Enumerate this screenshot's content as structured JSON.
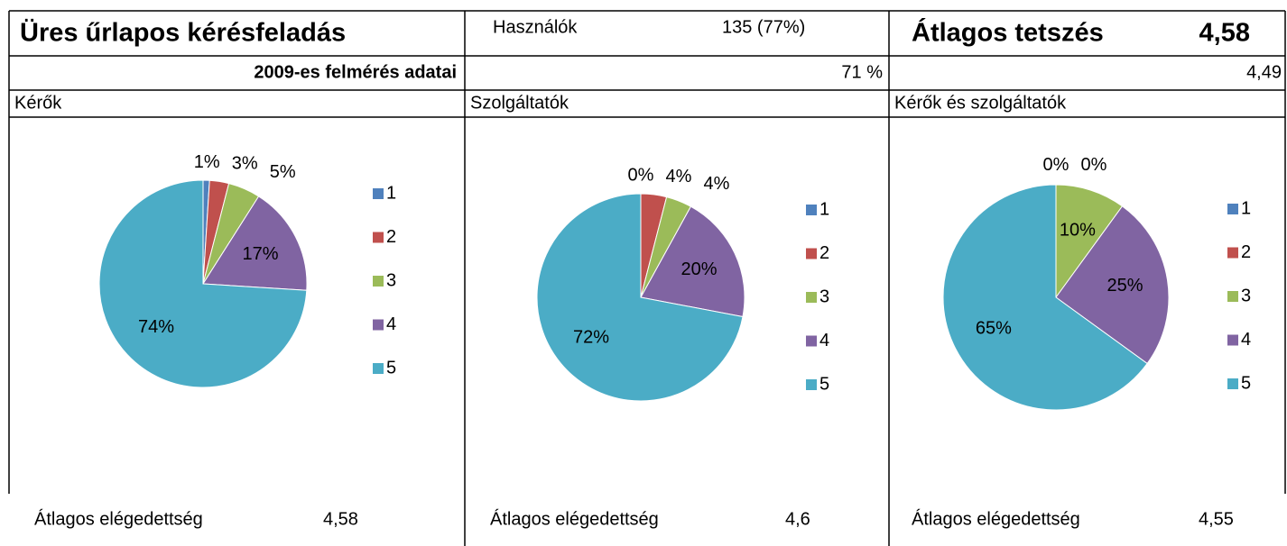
{
  "header": {
    "title": "Üres űrlapos kérésfeladás",
    "subtitle": "2009-es felmérés adatai"
  },
  "users": {
    "label": "Használók",
    "value": "135 (77%)",
    "previous": "71 %"
  },
  "liking": {
    "label": "Átlagos tetszés",
    "value": "4,58",
    "previous": "4,49"
  },
  "chart_data": [
    {
      "type": "pie",
      "title": "Kérők",
      "categories": [
        "1",
        "2",
        "3",
        "4",
        "5"
      ],
      "values": [
        1,
        3,
        5,
        17,
        74
      ],
      "value_labels": [
        "1%",
        "3%",
        "5%",
        "17%",
        "74%"
      ],
      "colors": [
        "#4f81bd",
        "#c0504d",
        "#9bbb59",
        "#8064a2",
        "#4bacc6"
      ],
      "footer": {
        "label": "Átlagos elégedettség",
        "value": "4,58"
      }
    },
    {
      "type": "pie",
      "title": "Szolgáltatók",
      "categories": [
        "1",
        "2",
        "3",
        "4",
        "5"
      ],
      "values": [
        0,
        4,
        4,
        20,
        72
      ],
      "value_labels": [
        "0%",
        "4%",
        "4%",
        "20%",
        "72%"
      ],
      "colors": [
        "#4f81bd",
        "#c0504d",
        "#9bbb59",
        "#8064a2",
        "#4bacc6"
      ],
      "footer": {
        "label": "Átlagos elégedettség",
        "value": "4,6"
      }
    },
    {
      "type": "pie",
      "title": "Kérők és szolgáltatók",
      "categories": [
        "1",
        "2",
        "3",
        "4",
        "5"
      ],
      "values": [
        0,
        0,
        10,
        25,
        65
      ],
      "value_labels": [
        "0%",
        "0%",
        "10%",
        "25%",
        "65%"
      ],
      "colors": [
        "#4f81bd",
        "#c0504d",
        "#9bbb59",
        "#8064a2",
        "#4bacc6"
      ],
      "footer": {
        "label": "Átlagos elégedettség",
        "value": "4,55"
      }
    }
  ]
}
